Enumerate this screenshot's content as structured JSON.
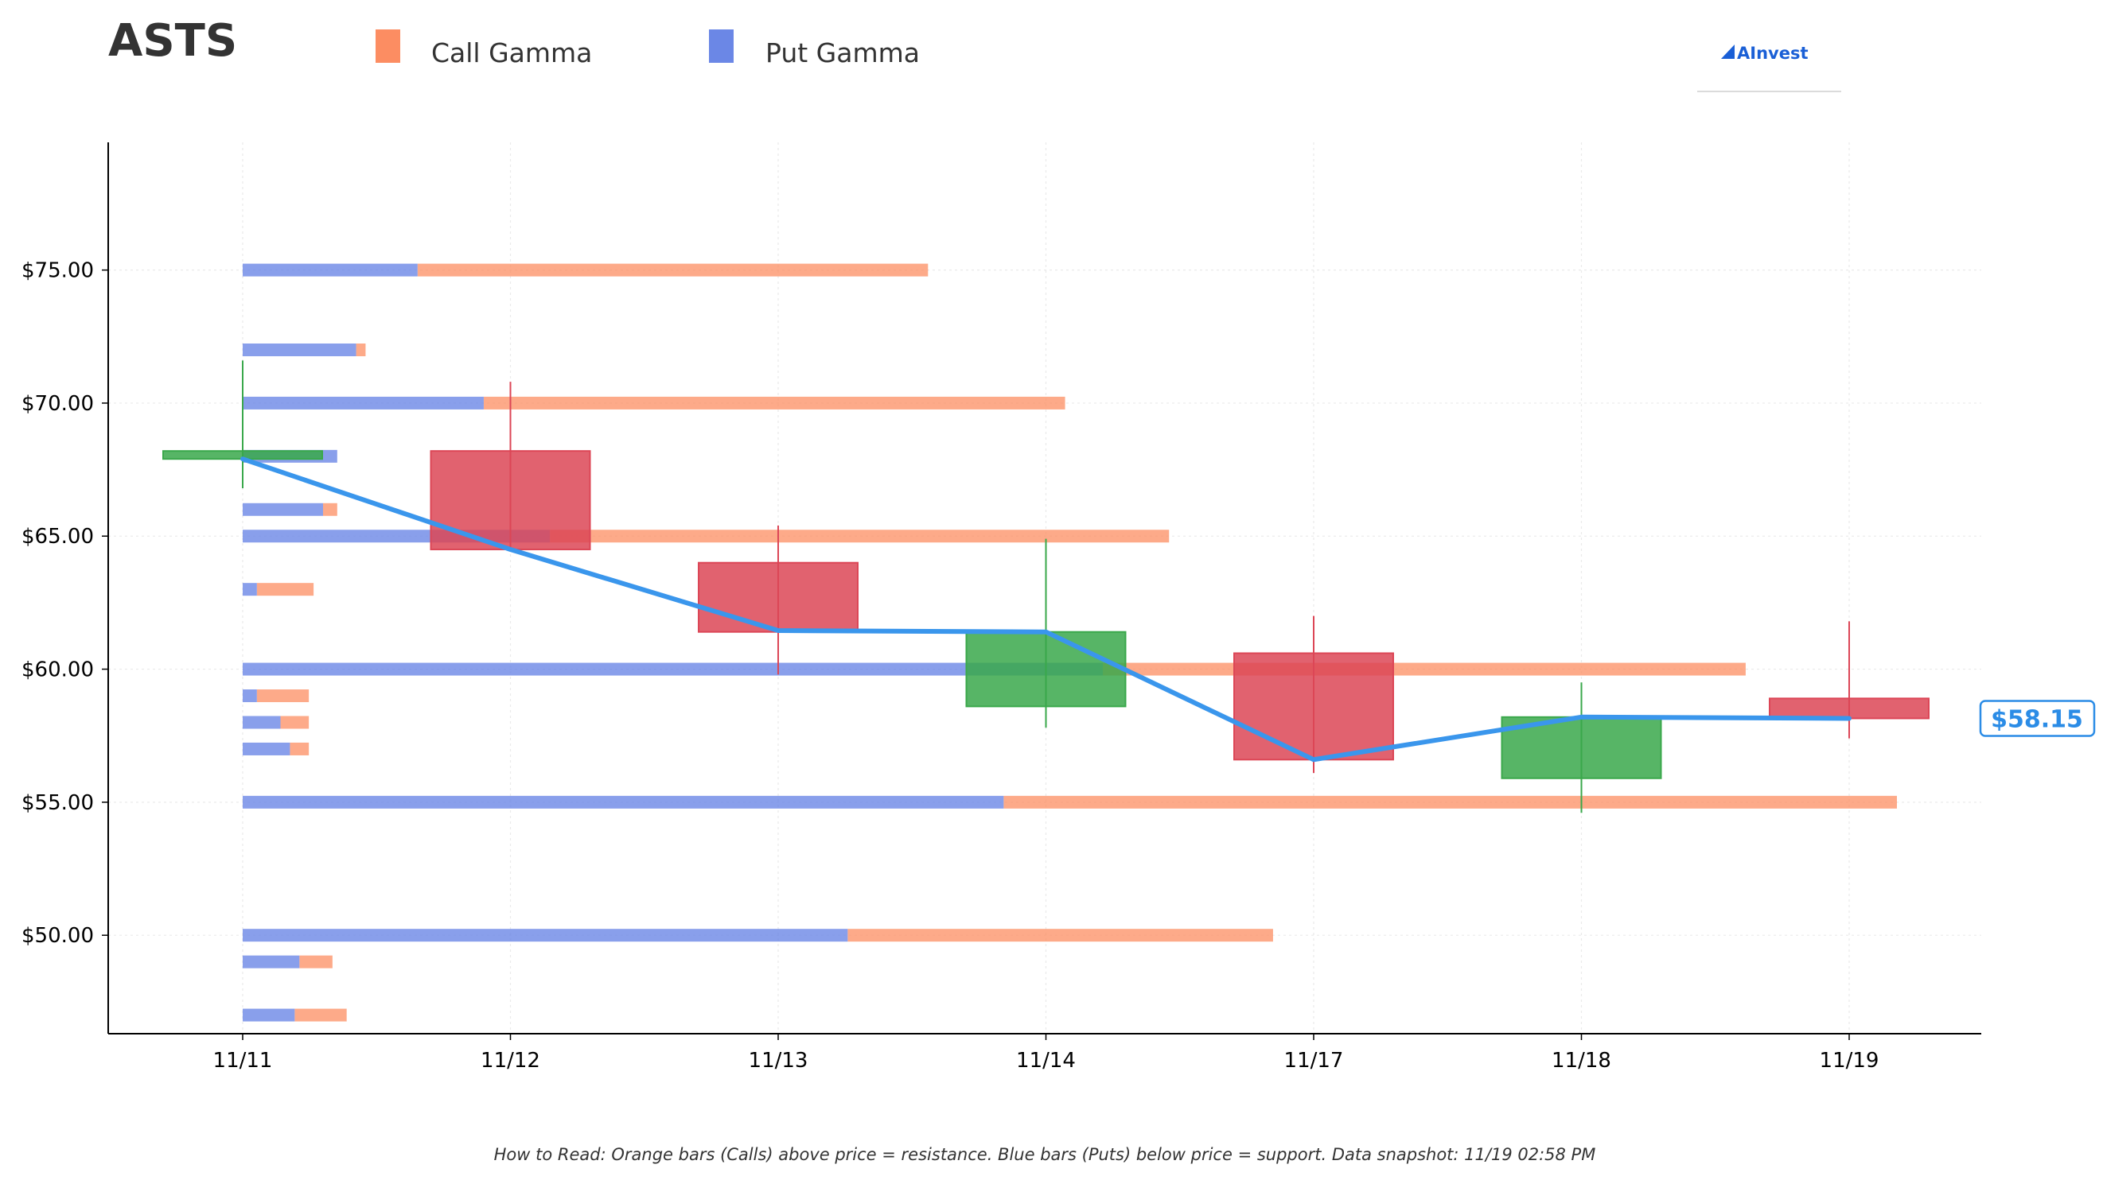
{
  "chart_data": {
    "type": "candlestick",
    "title": "ASTS",
    "legend": {
      "items": [
        {
          "label": "Call Gamma",
          "color": "#fc8d62"
        },
        {
          "label": "Put Gamma",
          "color": "#6b87e6"
        }
      ],
      "placement": "top"
    },
    "brand": "AInvest",
    "footnote": "How to Read: Orange bars (Calls) above price = resistance. Blue bars (Puts) below price = support. Data snapshot: 11/19 02:58 PM",
    "current_price_label": "$58.15",
    "current_price": 58.15,
    "x_categories": [
      "11/11",
      "11/12",
      "11/13",
      "11/14",
      "11/17",
      "11/18",
      "11/19"
    ],
    "ylim": [
      46.3,
      79.8
    ],
    "y_ticks": [
      {
        "value": 50,
        "label": "$50.00"
      },
      {
        "value": 55,
        "label": "$55.00"
      },
      {
        "value": 60,
        "label": "$60.00"
      },
      {
        "value": 65,
        "label": "$65.00"
      },
      {
        "value": 70,
        "label": "$70.00"
      },
      {
        "value": 75,
        "label": "$75.00"
      }
    ],
    "grid": true,
    "candles": [
      {
        "date": "11/11",
        "open": 67.9,
        "close": 68.2,
        "high": 71.6,
        "low": 66.8,
        "direction": "up"
      },
      {
        "date": "11/12",
        "open": 68.2,
        "close": 64.5,
        "high": 70.8,
        "low": 64.5,
        "direction": "down"
      },
      {
        "date": "11/13",
        "open": 64.0,
        "close": 61.4,
        "high": 65.4,
        "low": 59.8,
        "direction": "down"
      },
      {
        "date": "11/14",
        "open": 58.6,
        "close": 61.4,
        "high": 64.9,
        "low": 57.8,
        "direction": "up"
      },
      {
        "date": "11/17",
        "open": 60.6,
        "close": 56.6,
        "high": 62.0,
        "low": 56.1,
        "direction": "down"
      },
      {
        "date": "11/18",
        "open": 55.9,
        "close": 58.2,
        "high": 59.5,
        "low": 54.6,
        "direction": "up"
      },
      {
        "date": "11/19",
        "open": 58.9,
        "close": 58.15,
        "high": 61.8,
        "low": 57.4,
        "direction": "down"
      }
    ],
    "price_line": {
      "color": "#3a96ec",
      "values": [
        67.9,
        64.5,
        61.45,
        61.4,
        56.6,
        58.2,
        58.15
      ]
    },
    "gamma_bars": [
      {
        "strike": 75,
        "put": 0.37,
        "call": 1.08
      },
      {
        "strike": 72,
        "put": 0.24,
        "call": 0.02
      },
      {
        "strike": 70,
        "put": 0.51,
        "call": 1.23
      },
      {
        "strike": 68,
        "put": 0.2,
        "call": 0.0
      },
      {
        "strike": 66,
        "put": 0.17,
        "call": 0.03
      },
      {
        "strike": 65,
        "put": 0.65,
        "call": 1.31
      },
      {
        "strike": 63,
        "put": 0.03,
        "call": 0.12
      },
      {
        "strike": 60,
        "put": 1.82,
        "call": 1.36
      },
      {
        "strike": 59,
        "put": 0.03,
        "call": 0.11
      },
      {
        "strike": 58,
        "put": 0.08,
        "call": 0.06
      },
      {
        "strike": 57,
        "put": 0.1,
        "call": 0.04
      },
      {
        "strike": 55,
        "put": 1.61,
        "call": 1.89
      },
      {
        "strike": 50,
        "put": 1.28,
        "call": 0.9
      },
      {
        "strike": 49,
        "put": 0.12,
        "call": 0.07
      },
      {
        "strike": 47,
        "put": 0.11,
        "call": 0.11
      }
    ],
    "colors": {
      "up": "#3aa84b",
      "down": "#dc4656",
      "call": "#fc8d62",
      "put": "#6b87e6",
      "axis": "#000000",
      "grid": "#dddddd"
    }
  }
}
